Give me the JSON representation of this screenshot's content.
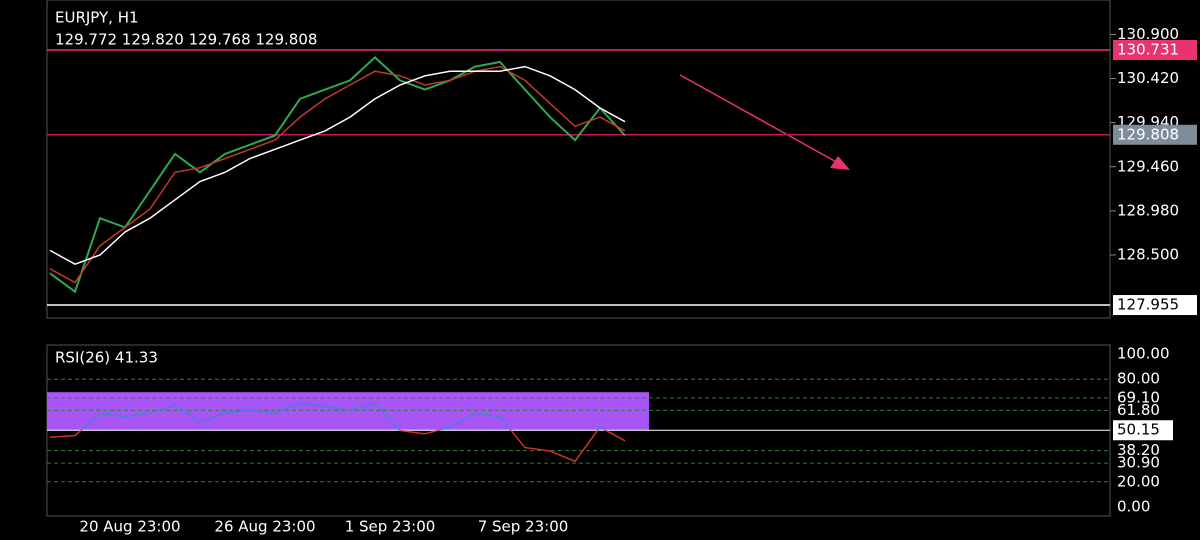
{
  "chart_data": [
    {
      "type": "line",
      "title": "EURJPY, H1",
      "subtitle": "129.772 129.820 129.768 129.808",
      "ylim": [
        127.814,
        131.275
      ],
      "yticks": [
        {
          "value": 130.9,
          "label": "130.900"
        },
        {
          "value": 130.42,
          "label": "130.420"
        },
        {
          "value": 129.94,
          "label": "129.940"
        },
        {
          "value": 129.46,
          "label": "129.460"
        },
        {
          "value": 128.98,
          "label": "128.980"
        },
        {
          "value": 128.5,
          "label": "128.500"
        }
      ],
      "series": [
        {
          "color": "#2fa84f",
          "values": [
            128.3,
            128.1,
            128.9,
            128.8,
            129.2,
            129.6,
            129.4,
            129.6,
            129.7,
            129.8,
            130.2,
            130.3,
            130.4,
            130.65,
            130.4,
            130.3,
            130.4,
            130.55,
            130.6,
            130.3,
            130.0,
            129.75,
            130.1,
            129.8
          ]
        },
        {
          "color": "#c0392b",
          "values": [
            128.35,
            128.2,
            128.6,
            128.8,
            129.0,
            129.4,
            129.45,
            129.55,
            129.65,
            129.75,
            130.0,
            130.2,
            130.35,
            130.5,
            130.45,
            130.35,
            130.4,
            130.5,
            130.55,
            130.4,
            130.15,
            129.9,
            130.0,
            129.85
          ]
        },
        {
          "color": "#ffffff",
          "values": [
            128.55,
            128.4,
            128.5,
            128.75,
            128.9,
            129.1,
            129.3,
            129.4,
            129.55,
            129.65,
            129.75,
            129.85,
            130.0,
            130.2,
            130.35,
            130.45,
            130.5,
            130.5,
            130.5,
            130.55,
            130.45,
            130.3,
            130.1,
            129.95
          ]
        }
      ],
      "levels": [
        {
          "value": 130.731,
          "color": "#e8336f"
        },
        {
          "value": 129.808,
          "color": "#c2185b",
          "badge": "#7f8c99"
        },
        {
          "value": 127.955,
          "color": "#ffffff"
        }
      ]
    },
    {
      "type": "line",
      "title": "RSI(26) 41.33",
      "ylim": [
        0,
        100
      ],
      "yticks": [
        {
          "value": 100,
          "label": "100.00"
        },
        {
          "value": 80,
          "label": "80.00"
        },
        {
          "value": 69.1,
          "label": "69.10"
        },
        {
          "value": 61.8,
          "label": "61.80"
        },
        {
          "value": 38.2,
          "label": "38.20"
        },
        {
          "value": 30.9,
          "label": "30.90"
        },
        {
          "value": 20,
          "label": "20.00"
        },
        {
          "value": 0,
          "label": "0.00"
        }
      ],
      "level": 50.15,
      "band": [
        50,
        72.4
      ],
      "band_color": "#a855f7",
      "series": [
        {
          "color": "#4a7fd6",
          "below_color": "#d0311f",
          "values": [
            46,
            47,
            60,
            58,
            60,
            65,
            55,
            60,
            62,
            60,
            66,
            64,
            62,
            66,
            50,
            48,
            52,
            60,
            58,
            40,
            38,
            32,
            52,
            44
          ]
        }
      ],
      "x_labels": [
        "20 Aug 23:00",
        "26 Aug 23:00",
        "1 Sep 23:00",
        "7 Sep 23:00"
      ]
    }
  ]
}
